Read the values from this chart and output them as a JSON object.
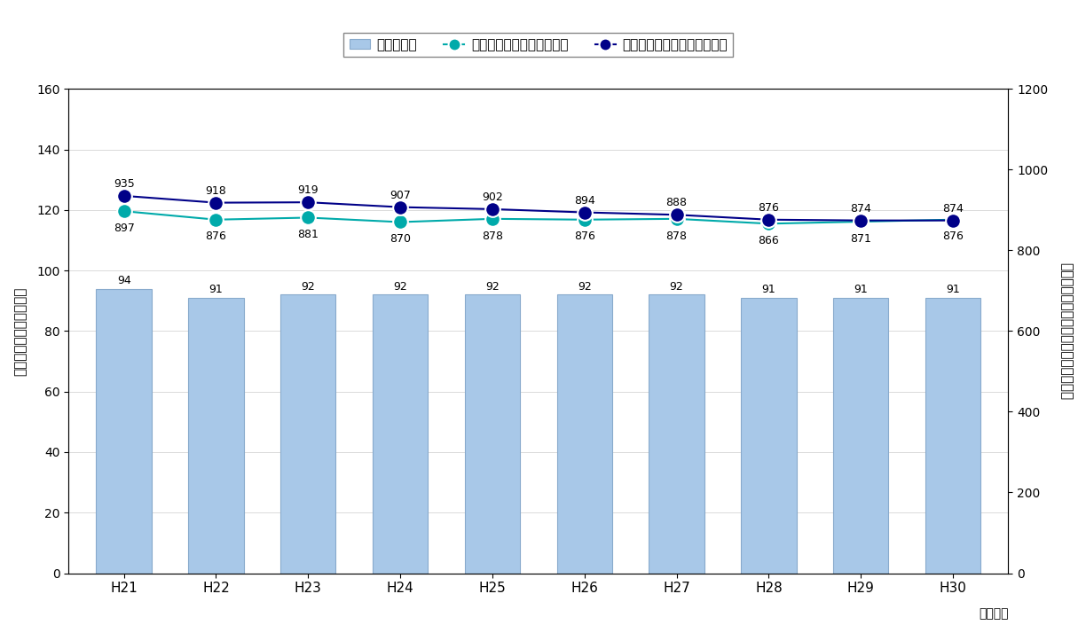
{
  "years": [
    "H21",
    "H22",
    "H23",
    "H24",
    "H25",
    "H26",
    "H27",
    "H28",
    "H29",
    "H30"
  ],
  "bar_values": [
    94,
    91,
    92,
    92,
    92,
    92,
    92,
    91,
    91,
    91
  ],
  "hiroshima_values": [
    897,
    876,
    881,
    870,
    878,
    876,
    878,
    866,
    871,
    876
  ],
  "national_values": [
    935,
    918,
    919,
    907,
    902,
    894,
    888,
    876,
    874,
    874
  ],
  "bar_color": "#a8c8e8",
  "bar_edge_color": "#88aacc",
  "hiroshima_color": "#00aaaa",
  "national_color": "#000088",
  "bar_label_fontsize": 9,
  "line_label_fontsize": 9,
  "xlabel": "（年度）",
  "ylabel_left": "ごみ排出量（万ｔ／年）",
  "ylabel_right": "１人１日当たりの排出量（ｇ／人日）",
  "ylim_left": [
    0,
    160
  ],
  "ylim_right": [
    0,
    1200
  ],
  "yticks_left": [
    0,
    20,
    40,
    60,
    80,
    100,
    120,
    140,
    160
  ],
  "yticks_right": [
    0,
    200,
    400,
    600,
    800,
    1000,
    1200
  ],
  "legend_labels": [
    "ごみ排出量",
    "１人１日排出量（広島県）",
    "１人１日排出量（全国平均）"
  ],
  "background_color": "#ffffff",
  "scale_factor": 7.5
}
